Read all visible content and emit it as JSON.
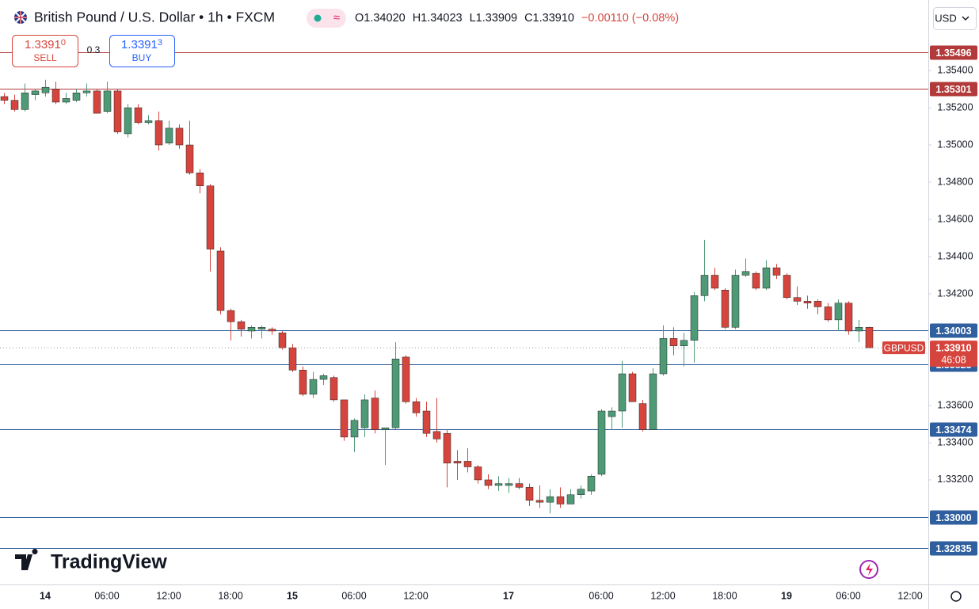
{
  "chart_data": {
    "type": "candlestick",
    "title": "British Pound / U.S. Dollar • 1h • FXCM",
    "ohlc_text": [
      "O1.34020",
      "H1.34023",
      "L1.33909",
      "C1.33910",
      "−0.00110 (−0.08%)"
    ],
    "sell": {
      "main": "1.3391",
      "pipette": "0",
      "label": "SELL"
    },
    "spread": "0.3",
    "buy": {
      "main": "1.3391",
      "pipette": "3",
      "label": "BUY"
    },
    "currency": "USD",
    "brand": "TradingView",
    "up_color": "#4f9a76",
    "down_color": "#d6453d",
    "grid": false,
    "ylim": [
      1.32638,
      1.3563
    ],
    "yticks": [
      {
        "value": 1.354,
        "label": "1.35400"
      },
      {
        "value": 1.352,
        "label": "1.35200"
      },
      {
        "value": 1.35,
        "label": "1.35000"
      },
      {
        "value": 1.348,
        "label": "1.34800"
      },
      {
        "value": 1.346,
        "label": "1.34600"
      },
      {
        "value": 1.344,
        "label": "1.34400"
      },
      {
        "value": 1.342,
        "label": "1.34200"
      },
      {
        "value": 1.336,
        "label": "1.33600"
      },
      {
        "value": 1.334,
        "label": "1.33400"
      },
      {
        "value": 1.332,
        "label": "1.33200"
      }
    ],
    "levels": [
      {
        "value": 1.35496,
        "color": "#b33a3a"
      },
      {
        "value": 1.35301,
        "color": "#b33a3a"
      },
      {
        "value": 1.34003,
        "color": "#2f5f9e"
      },
      {
        "value": 1.33823,
        "color": "#2f5f9e"
      },
      {
        "value": 1.33474,
        "color": "#2f5f9e"
      },
      {
        "value": 1.33,
        "label": "1.33000",
        "color": "#2f5f9e"
      },
      {
        "value": 1.32835,
        "color": "#2f5f9e"
      }
    ],
    "last": {
      "value": 1.3391,
      "label": "1.33910",
      "symbol": "GBPUSD",
      "countdown": "46:08",
      "color": "#d6453d"
    },
    "categories": [
      null,
      null,
      null,
      null,
      "14",
      null,
      null,
      null,
      null,
      null,
      "06:00",
      null,
      null,
      null,
      null,
      null,
      "12:00",
      null,
      null,
      null,
      null,
      null,
      "18:00",
      null,
      null,
      null,
      null,
      null,
      "15",
      null,
      null,
      null,
      null,
      null,
      "06:00",
      null,
      null,
      null,
      null,
      null,
      "12:00",
      null,
      null,
      null,
      null,
      null,
      null,
      null,
      null,
      "17",
      null,
      null,
      null,
      null,
      null,
      null,
      null,
      null,
      "06:00",
      null,
      null,
      null,
      null,
      null,
      "12:00",
      null,
      null,
      null,
      null,
      null,
      "18:00",
      null,
      null,
      null,
      null,
      null,
      "19",
      null,
      null,
      null,
      null,
      null,
      "06:00",
      null,
      null,
      null,
      null,
      null,
      "12:00"
    ],
    "open": [
      1.3526,
      1.3524,
      1.3519,
      1.3527,
      1.3528,
      1.353,
      1.3523,
      1.3524,
      1.3528,
      1.3529,
      1.3518,
      1.3529,
      1.3506,
      1.352,
      1.3512,
      1.3513,
      1.3501,
      1.3509,
      1.35,
      1.3485,
      1.3478,
      1.3443,
      1.3411,
      1.3405,
      1.34,
      1.3401,
      1.3401,
      1.3399,
      1.3391,
      1.3379,
      1.3366,
      1.3374,
      1.3375,
      1.3363,
      1.3343,
      1.3348,
      1.3364,
      1.3347,
      1.3348,
      1.3386,
      1.3362,
      1.3357,
      1.3346,
      1.3345,
      1.333,
      1.333,
      1.3327,
      1.332,
      1.3317,
      1.3317,
      1.3318,
      1.3316,
      1.3309,
      1.3308,
      1.3311,
      1.3307,
      1.3312,
      1.3314,
      1.3323,
      1.3354,
      1.3357,
      1.3377,
      1.3361,
      1.3347,
      1.3377,
      1.3396,
      1.3392,
      1.3395,
      1.3419,
      1.343,
      1.3422,
      1.3402,
      1.343,
      1.3431,
      1.3423,
      1.3434,
      1.343,
      1.3418,
      1.3416,
      1.3416,
      1.3413,
      1.3406,
      1.3415,
      1.34,
      1.3402,
      null,
      null,
      null,
      null
    ],
    "high": [
      1.3528,
      1.3527,
      1.3533,
      1.353,
      1.3535,
      1.3534,
      1.3528,
      1.353,
      1.3533,
      1.353,
      1.3534,
      1.353,
      1.3522,
      1.3522,
      1.3516,
      1.3518,
      1.3513,
      1.3511,
      1.3513,
      1.3487,
      1.3479,
      1.3445,
      1.3412,
      1.3406,
      1.3403,
      1.3403,
      1.3402,
      1.34,
      1.3393,
      1.3381,
      1.3378,
      1.3377,
      1.3376,
      1.3363,
      1.3353,
      1.3366,
      1.3368,
      1.3348,
      1.3394,
      1.3387,
      1.3364,
      1.3362,
      1.3364,
      1.3347,
      1.3336,
      1.3337,
      1.3328,
      1.3323,
      1.3322,
      1.3321,
      1.3321,
      1.3318,
      1.3317,
      1.3315,
      1.3316,
      1.3315,
      1.3317,
      1.3323,
      1.3358,
      1.3359,
      1.3384,
      1.3378,
      1.3363,
      1.338,
      1.3403,
      1.3402,
      1.3399,
      1.3421,
      1.3449,
      1.3434,
      1.3423,
      1.3433,
      1.3439,
      1.3432,
      1.3438,
      1.3436,
      1.3431,
      1.3424,
      1.3419,
      1.3417,
      1.3415,
      1.3417,
      1.3416,
      1.3406,
      1.34023,
      null,
      null,
      null,
      null
    ],
    "low": [
      1.3522,
      1.3518,
      1.3518,
      1.3524,
      1.3526,
      1.3522,
      1.3522,
      1.3523,
      1.3526,
      1.3517,
      1.3517,
      1.3506,
      1.3504,
      1.3511,
      1.3511,
      1.3497,
      1.35,
      1.3498,
      1.3484,
      1.3474,
      1.3432,
      1.3409,
      1.3395,
      1.3397,
      1.3396,
      1.3396,
      1.3398,
      1.339,
      1.3378,
      1.3365,
      1.3364,
      1.3371,
      1.3362,
      1.3341,
      1.3335,
      1.3343,
      1.3345,
      1.3328,
      1.3347,
      1.3361,
      1.3354,
      1.3343,
      1.334,
      1.3316,
      1.332,
      1.3324,
      1.3318,
      1.3315,
      1.3314,
      1.3313,
      1.3315,
      1.3306,
      1.3305,
      1.3302,
      1.3305,
      1.3307,
      1.331,
      1.3312,
      1.3322,
      1.3347,
      1.3348,
      1.3362,
      1.3346,
      1.3347,
      1.3376,
      1.3387,
      1.3381,
      1.3383,
      1.3416,
      1.3422,
      1.3401,
      1.3401,
      1.3429,
      1.3422,
      1.3422,
      1.3428,
      1.3417,
      1.3414,
      1.3412,
      1.3409,
      1.3405,
      1.34,
      1.3398,
      1.3394,
      1.33909,
      null,
      null,
      null,
      null
    ],
    "close": [
      1.3524,
      1.3519,
      1.3528,
      1.3529,
      1.3531,
      1.3523,
      1.3525,
      1.3528,
      1.3529,
      1.3517,
      1.3529,
      1.3507,
      1.352,
      1.3512,
      1.3513,
      1.35,
      1.3509,
      1.35,
      1.3485,
      1.3478,
      1.3444,
      1.3411,
      1.3405,
      1.3401,
      1.3402,
      1.3402,
      1.34,
      1.3391,
      1.3379,
      1.3366,
      1.3374,
      1.3376,
      1.3363,
      1.3343,
      1.3352,
      1.3363,
      1.3347,
      1.3348,
      1.3385,
      1.3362,
      1.3356,
      1.3345,
      1.3342,
      1.3329,
      1.3329,
      1.3327,
      1.332,
      1.3317,
      1.3318,
      1.3318,
      1.3316,
      1.3309,
      1.3308,
      1.3311,
      1.3307,
      1.3312,
      1.3315,
      1.3322,
      1.3357,
      1.3357,
      1.3377,
      1.3362,
      1.3347,
      1.3377,
      1.3396,
      1.3392,
      1.3395,
      1.3419,
      1.343,
      1.3423,
      1.3402,
      1.343,
      1.3432,
      1.3423,
      1.3434,
      1.343,
      1.3418,
      1.3416,
      1.3415,
      1.3413,
      1.3406,
      1.3415,
      1.34,
      1.3402,
      1.3391,
      null,
      null,
      null,
      null
    ]
  }
}
